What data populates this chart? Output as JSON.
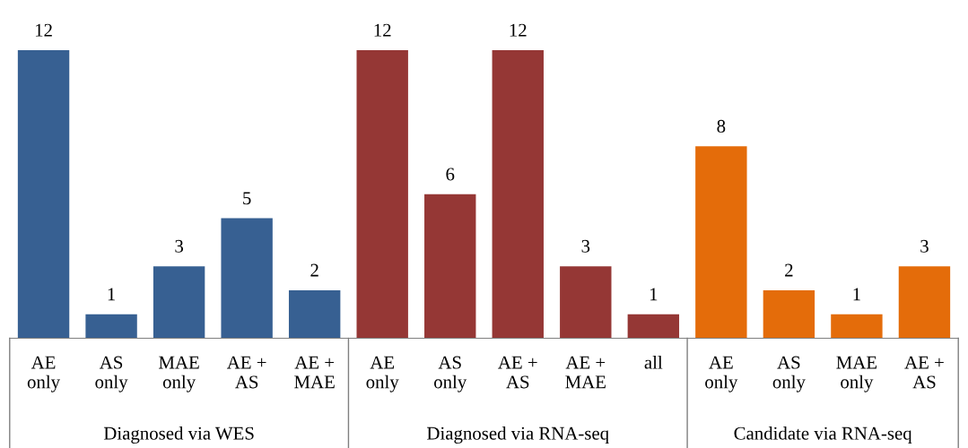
{
  "chart_data": {
    "type": "bar",
    "categories": [
      "AE\nonly",
      "AS\nonly",
      "MAE\nonly",
      "AE +\nAS",
      "AE +\nMAE",
      "AE\nonly",
      "AS\nonly",
      "AE +\nAS",
      "AE +\nMAE",
      "all",
      "AE\nonly",
      "AS\nonly",
      "MAE\nonly",
      "AE +\nAS"
    ],
    "values": [
      12,
      1,
      3,
      5,
      2,
      12,
      6,
      12,
      3,
      1,
      8,
      2,
      1,
      3
    ],
    "colors": [
      "#376092",
      "#376092",
      "#376092",
      "#376092",
      "#376092",
      "#953735",
      "#953735",
      "#953735",
      "#953735",
      "#953735",
      "#e46c0a",
      "#e46c0a",
      "#e46c0a",
      "#e46c0a"
    ],
    "annotations": [
      "Diagnosed via WES",
      "Diagnosed via RNA-seq",
      "Candidate via RNA-seq"
    ],
    "data_labels": true,
    "grid": false
  }
}
